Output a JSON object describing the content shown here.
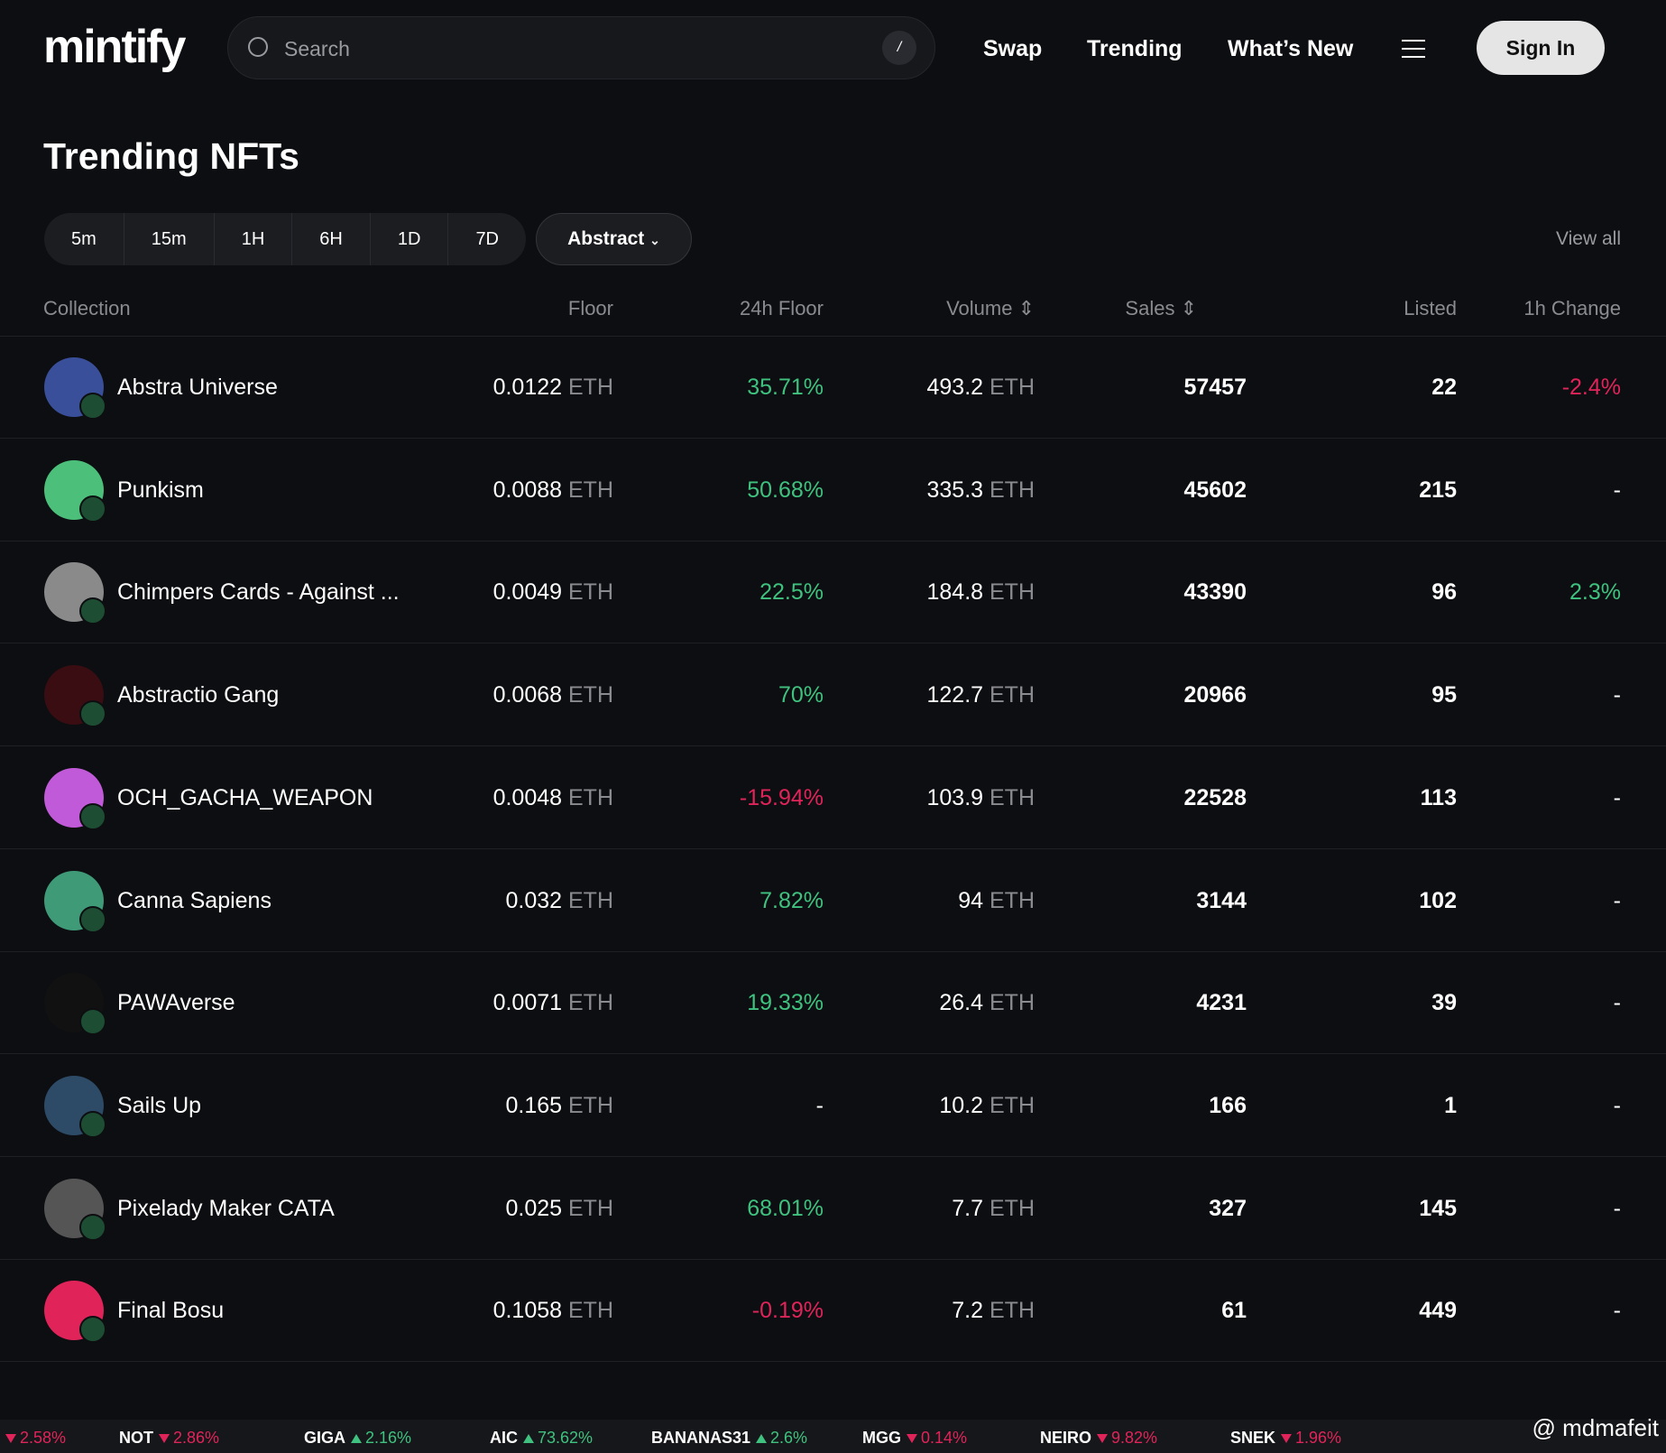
{
  "nav": {
    "logo": "mintify",
    "search_placeholder": "Search",
    "search_shortcut": "/",
    "links": [
      "Swap",
      "Trending",
      "What’s New"
    ],
    "sign_in": "Sign In"
  },
  "page": {
    "title": "Trending NFTs",
    "time_filters": [
      "5m",
      "15m",
      "1H",
      "6H",
      "1D",
      "7D"
    ],
    "chain": "Abstract",
    "view_all": "View all"
  },
  "table": {
    "headers": {
      "collection": "Collection",
      "floor": "Floor",
      "floor_24h": "24h Floor",
      "volume": "Volume",
      "sales": "Sales",
      "listed": "Listed",
      "change_1h": "1h Change"
    },
    "rows": [
      {
        "collection": "Abstra Universe",
        "floor": "0.0122",
        "floor_unit": "ETH",
        "floor_24h": "35.71%",
        "volume": "493.2",
        "volume_unit": "ETH",
        "sales": "57457",
        "listed": "22",
        "change_1h": "-2.4%",
        "avatar_color": "#3a4f9a"
      },
      {
        "collection": "Punkism",
        "floor": "0.0088",
        "floor_unit": "ETH",
        "floor_24h": "50.68%",
        "volume": "335.3",
        "volume_unit": "ETH",
        "sales": "45602",
        "listed": "215",
        "change_1h": "-",
        "avatar_color": "#4cc07a"
      },
      {
        "collection": "Chimpers Cards - Against ...",
        "floor": "0.0049",
        "floor_unit": "ETH",
        "floor_24h": "22.5%",
        "volume": "184.8",
        "volume_unit": "ETH",
        "sales": "43390",
        "listed": "96",
        "change_1h": "2.3%",
        "avatar_color": "#8a8a8a"
      },
      {
        "collection": "Abstractio Gang",
        "floor": "0.0068",
        "floor_unit": "ETH",
        "floor_24h": "70%",
        "volume": "122.7",
        "volume_unit": "ETH",
        "sales": "20966",
        "listed": "95",
        "change_1h": "-",
        "avatar_color": "#3a0d12"
      },
      {
        "collection": "OCH_GACHA_WEAPON",
        "floor": "0.0048",
        "floor_unit": "ETH",
        "floor_24h": "-15.94%",
        "volume": "103.9",
        "volume_unit": "ETH",
        "sales": "22528",
        "listed": "113",
        "change_1h": "-",
        "avatar_color": "#c05ad8"
      },
      {
        "collection": "Canna Sapiens",
        "floor": "0.032",
        "floor_unit": "ETH",
        "floor_24h": "7.82%",
        "volume": "94",
        "volume_unit": "ETH",
        "sales": "3144",
        "listed": "102",
        "change_1h": "-",
        "avatar_color": "#3f9a78"
      },
      {
        "collection": "PAWAverse",
        "floor": "0.0071",
        "floor_unit": "ETH",
        "floor_24h": "19.33%",
        "volume": "26.4",
        "volume_unit": "ETH",
        "sales": "4231",
        "listed": "39",
        "change_1h": "-",
        "avatar_color": "#111111"
      },
      {
        "collection": "Sails Up",
        "floor": "0.165",
        "floor_unit": "ETH",
        "floor_24h": "-",
        "volume": "10.2",
        "volume_unit": "ETH",
        "sales": "166",
        "listed": "1",
        "change_1h": "-",
        "avatar_color": "#2d4a66"
      },
      {
        "collection": "Pixelady Maker CATA",
        "floor": "0.025",
        "floor_unit": "ETH",
        "floor_24h": "68.01%",
        "volume": "7.7",
        "volume_unit": "ETH",
        "sales": "327",
        "listed": "145",
        "change_1h": "-",
        "avatar_color": "#555555"
      },
      {
        "collection": "Final Bosu",
        "floor": "0.1058",
        "floor_unit": "ETH",
        "floor_24h": "-0.19%",
        "volume": "7.2",
        "volume_unit": "ETH",
        "sales": "61",
        "listed": "449",
        "change_1h": "-",
        "avatar_color": "#e0245a"
      }
    ]
  },
  "ticker": [
    {
      "change": "2.58%",
      "up": false
    },
    {
      "name": "NOT",
      "change": "2.86%",
      "up": false
    },
    {
      "name": "GIGA",
      "change": "2.16%",
      "up": true
    },
    {
      "name": "AIC",
      "change": "73.62%",
      "up": true
    },
    {
      "name": "BANANAS31",
      "change": "2.6%",
      "up": true
    },
    {
      "name": "MGG",
      "change": "0.14%",
      "up": false
    },
    {
      "name": "NEIRO",
      "change": "9.82%",
      "up": false
    },
    {
      "name": "SNEK",
      "change": "1.96%",
      "up": false
    }
  ],
  "watermark": "@ mdmafeit"
}
